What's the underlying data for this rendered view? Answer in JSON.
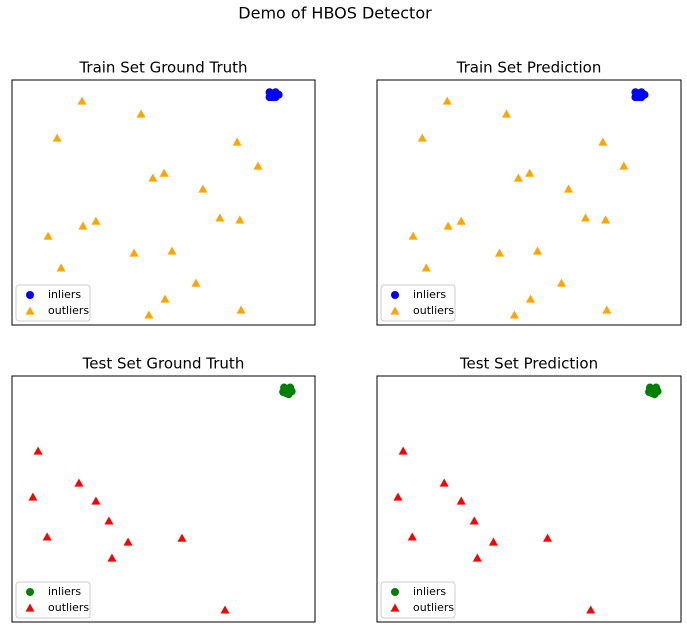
{
  "title": "Demo of HBOS Detector",
  "chart_data": [
    {
      "type": "scatter",
      "title": "Train Set Ground Truth",
      "xlim": [
        0,
        100
      ],
      "ylim": [
        0,
        100
      ],
      "legend": "lower left",
      "series": [
        {
          "name": "inliers",
          "color": "blue",
          "marker": "circle",
          "x": [
            86,
            85,
            87,
            86,
            88,
            85,
            87
          ],
          "y": [
            94,
            95,
            95,
            93,
            94,
            93,
            93
          ]
        },
        {
          "name": "outliers",
          "color": "orange",
          "marker": "triangle",
          "x": [
            23.1,
            42.6,
            14.9,
            74.3,
            81.2,
            46.5,
            50.2,
            63.0,
            27.7,
            23.4,
            68.6,
            75.2,
            11.9,
            40.3,
            52.8,
            16.2,
            60.7,
            50.5,
            75.6,
            45.2
          ],
          "y": [
            91.4,
            86.1,
            76.3,
            74.7,
            64.9,
            60.0,
            62.0,
            55.5,
            42.4,
            40.4,
            43.7,
            42.9,
            36.3,
            29.4,
            30.2,
            23.3,
            17.1,
            10.6,
            6.1,
            4.1
          ]
        }
      ]
    },
    {
      "type": "scatter",
      "title": "Train Set Prediction",
      "xlim": [
        0,
        100
      ],
      "ylim": [
        0,
        100
      ],
      "legend": "lower left",
      "series": [
        {
          "name": "inliers",
          "color": "blue",
          "marker": "circle",
          "x": [
            86,
            85,
            87,
            86,
            88,
            85,
            87
          ],
          "y": [
            94,
            95,
            95,
            93,
            94,
            93,
            93
          ]
        },
        {
          "name": "outliers",
          "color": "orange",
          "marker": "triangle",
          "x": [
            23.1,
            42.6,
            14.9,
            74.3,
            81.2,
            46.5,
            50.2,
            63.0,
            27.7,
            23.4,
            68.6,
            75.2,
            11.9,
            40.3,
            52.8,
            16.2,
            60.7,
            50.5,
            75.6,
            45.2
          ],
          "y": [
            91.4,
            86.1,
            76.3,
            74.7,
            64.9,
            60.0,
            62.0,
            55.5,
            42.4,
            40.4,
            43.7,
            42.9,
            36.3,
            29.4,
            30.2,
            23.3,
            17.1,
            10.6,
            6.1,
            4.1
          ]
        }
      ]
    },
    {
      "type": "scatter",
      "title": "Test Set Ground Truth",
      "xlim": [
        0,
        100
      ],
      "ylim": [
        0,
        100
      ],
      "legend": "lower left",
      "series": [
        {
          "name": "inliers",
          "color": "green",
          "marker": "circle",
          "x": [
            90.8,
            89.8,
            91.8,
            90.5,
            92.3,
            89.5,
            91.3
          ],
          "y": [
            94.3,
            95.3,
            95.3,
            93.0,
            93.8,
            93.5,
            92.6
          ]
        },
        {
          "name": "outliers",
          "color": "red",
          "marker": "triangle",
          "x": [
            8.6,
            22.1,
            6.9,
            27.7,
            32.0,
            11.6,
            38.3,
            56.1,
            33.0,
            70.3
          ],
          "y": [
            69.5,
            56.5,
            50.8,
            49.2,
            41.1,
            34.6,
            32.5,
            34.1,
            26.0,
            4.9
          ]
        }
      ]
    },
    {
      "type": "scatter",
      "title": "Test Set Prediction",
      "xlim": [
        0,
        100
      ],
      "ylim": [
        0,
        100
      ],
      "legend": "lower left",
      "series": [
        {
          "name": "inliers",
          "color": "green",
          "marker": "circle",
          "x": [
            90.8,
            89.8,
            91.8,
            90.5,
            92.3,
            89.5,
            91.3
          ],
          "y": [
            94.3,
            95.3,
            95.3,
            93.0,
            93.8,
            93.5,
            92.6
          ]
        },
        {
          "name": "outliers",
          "color": "red",
          "marker": "triangle",
          "x": [
            8.6,
            22.1,
            6.9,
            27.7,
            32.0,
            11.6,
            38.3,
            56.1,
            33.0,
            70.3
          ],
          "y": [
            69.5,
            56.5,
            50.8,
            49.2,
            41.1,
            34.6,
            32.5,
            34.1,
            26.0,
            4.9
          ]
        }
      ]
    }
  ]
}
